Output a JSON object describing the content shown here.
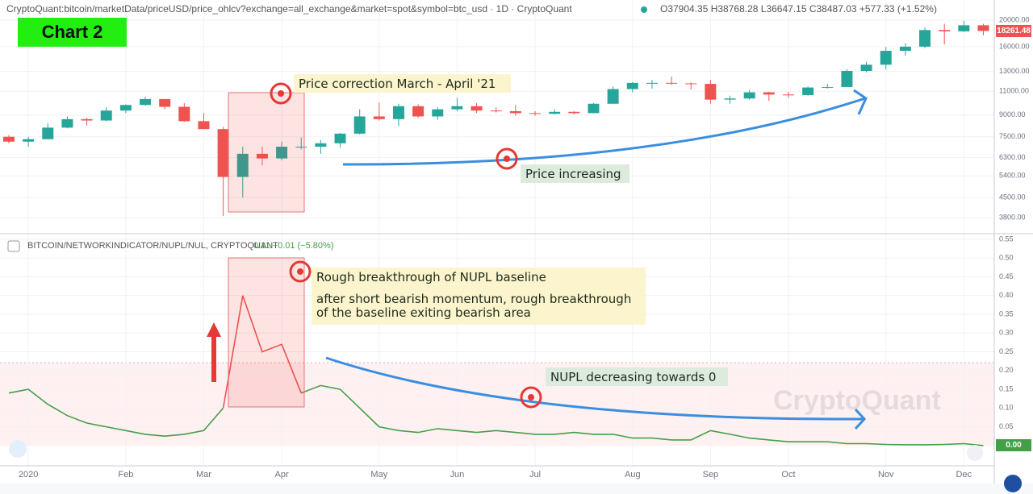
{
  "header": {
    "symbol": "CryptoQuant:bitcoin/marketData/priceUSD/price_ohlcv?exchange=all_exchange&market=spot&symbol=btc_usd · 1D · CryptoQuant",
    "ohlc": "O37904.35 H38768.28 L36647.15 C38487.03 +577.33 (+1.52%)",
    "badge": "Chart 2",
    "watermark": "CryptoQuant"
  },
  "chart_data": [
    {
      "type": "candlestick",
      "log_scale": true,
      "grid": true,
      "up_color": "#26a69a",
      "down_color": "#ef5350",
      "last_color": "#ef5350",
      "annotations": [
        "Price correction March - April '21",
        "Price increasing"
      ],
      "categories": [
        null,
        "2020",
        null,
        null,
        null,
        null,
        "Feb",
        null,
        null,
        null,
        "Mar",
        null,
        null,
        null,
        "Apr",
        null,
        null,
        null,
        null,
        "May",
        null,
        null,
        null,
        "Jun",
        null,
        null,
        null,
        "Jul",
        null,
        null,
        null,
        null,
        "Aug",
        null,
        null,
        null,
        "Sep",
        null,
        null,
        null,
        "Oct",
        null,
        null,
        null,
        null,
        "Nov",
        null,
        null,
        null,
        "Dec",
        null
      ],
      "open": [
        7500,
        7200,
        7350,
        8100,
        8700,
        8600,
        9350,
        9800,
        10300,
        9650,
        8550,
        8000,
        5350,
        6500,
        6250,
        6900,
        6900,
        7100,
        7700,
        8900,
        8700,
        9700,
        8900,
        9450,
        9700,
        9350,
        9300,
        9150,
        9100,
        9250,
        9150,
        9900,
        11200,
        11800,
        11800,
        11750,
        11700,
        10250,
        10350,
        10900,
        10700,
        10650,
        11350,
        11400,
        13050,
        13750,
        15450,
        16000,
        18400,
        18200,
        19150
      ],
      "high": [
        7600,
        7500,
        8400,
        8900,
        8800,
        9600,
        9850,
        10500,
        10300,
        9950,
        9150,
        8150,
        6900,
        6900,
        7200,
        7450,
        7300,
        7750,
        9450,
        10000,
        9900,
        9850,
        9600,
        10400,
        9950,
        9600,
        9800,
        9300,
        9450,
        9300,
        9950,
        11450,
        11900,
        12100,
        12450,
        11850,
        12100,
        10600,
        11100,
        10950,
        10950,
        11450,
        11700,
        13250,
        14100,
        15950,
        16500,
        18800,
        19400,
        19900,
        19400
      ],
      "low": [
        7100,
        6900,
        7350,
        8050,
        8250,
        8550,
        9150,
        9750,
        9450,
        8500,
        8000,
        3850,
        4500,
        5900,
        6150,
        6750,
        6500,
        6850,
        7650,
        8600,
        8200,
        8800,
        8650,
        9300,
        9150,
        9200,
        8950,
        8950,
        9050,
        9050,
        9150,
        9900,
        10900,
        11250,
        11600,
        11150,
        9900,
        9900,
        10250,
        10150,
        10400,
        10600,
        11250,
        11400,
        12900,
        13200,
        14850,
        15800,
        16300,
        18100,
        17600
      ],
      "close": [
        7200,
        7350,
        8100,
        8700,
        8600,
        9350,
        9800,
        10300,
        9650,
        8550,
        8000,
        5350,
        6500,
        6250,
        6900,
        6900,
        7100,
        7700,
        8900,
        8700,
        9700,
        8900,
        9450,
        9700,
        9350,
        9300,
        9150,
        9100,
        9250,
        9150,
        9900,
        11200,
        11800,
        11800,
        11750,
        11700,
        10250,
        10350,
        10900,
        10700,
        10650,
        11350,
        11400,
        13050,
        13750,
        15450,
        16000,
        18400,
        18200,
        19150,
        18261.48
      ],
      "ylim": [
        3320,
        22900
      ],
      "yticks": [
        {
          "value": 3800,
          "label": "3800.00"
        },
        {
          "value": 4500,
          "label": "4500.00"
        },
        {
          "value": 5400,
          "label": "5400.00"
        },
        {
          "value": 6300,
          "label": "6300.00"
        },
        {
          "value": 7500,
          "label": "7500.00"
        },
        {
          "value": 9000,
          "label": "9000.00"
        },
        {
          "value": 11000,
          "label": "11000.00"
        },
        {
          "value": 13000,
          "label": "13000.00"
        },
        {
          "value": 16000,
          "label": "16000.00"
        },
        {
          "value": 20000,
          "label": "20000.00"
        }
      ]
    },
    {
      "type": "line",
      "grid": true,
      "title": "BITCOIN/NETWORKINDICATOR/NUPL/NUL, CRYPTOQUANT",
      "legend_value": "0.11 −0.01 (−5.80%)",
      "last_label": "0.00",
      "last_color": "#43a047",
      "annotations": [
        "Rough breakthrough of NUPL baseline",
        "after short bearish momentum, rough breakthrough",
        "of the baseline exiting bearish area",
        "NUPL decreasing towards 0"
      ],
      "series": [
        {
          "color": "#43a047",
          "values": [
            0.14,
            0.15,
            0.11,
            0.08,
            0.06,
            0.05,
            0.04,
            0.03,
            0.025,
            0.03,
            0.04,
            0.1,
            null,
            null,
            null,
            0.14,
            0.16,
            0.15,
            0.1,
            0.05,
            0.04,
            0.035,
            0.045,
            0.04,
            0.035,
            0.04,
            0.035,
            0.03,
            0.03,
            0.035,
            0.03,
            0.03,
            0.02,
            0.02,
            0.015,
            0.015,
            0.04,
            0.03,
            0.02,
            0.015,
            0.01,
            0.01,
            0.01,
            0.005,
            0.005,
            0.003,
            0.002,
            0.002,
            0.003,
            0.005,
            0
          ]
        },
        {
          "color": "#ef5350",
          "values": [
            null,
            null,
            null,
            null,
            null,
            null,
            null,
            null,
            null,
            null,
            null,
            0.1,
            0.4,
            0.25,
            0.27,
            0.14,
            null,
            null,
            null,
            null,
            null,
            null,
            null,
            null,
            null,
            null,
            null,
            null,
            null,
            null,
            null,
            null,
            null,
            null,
            null,
            null,
            null,
            null,
            null,
            null,
            null,
            null,
            null,
            null,
            null,
            null,
            null,
            null,
            null,
            null,
            null
          ]
        }
      ],
      "ylim": [
        -0.054,
        0.565
      ],
      "yticks": [
        0.05,
        {
          "value": 0.1,
          "label": "0.10"
        },
        0.15,
        {
          "value": 0.2,
          "label": "0.20"
        },
        0.25,
        {
          "value": 0.3,
          "label": "0.30"
        },
        0.35,
        {
          "value": 0.4,
          "label": "0.40"
        },
        0.45,
        {
          "value": 0.5,
          "label": "0.50"
        },
        0.55
      ]
    }
  ]
}
